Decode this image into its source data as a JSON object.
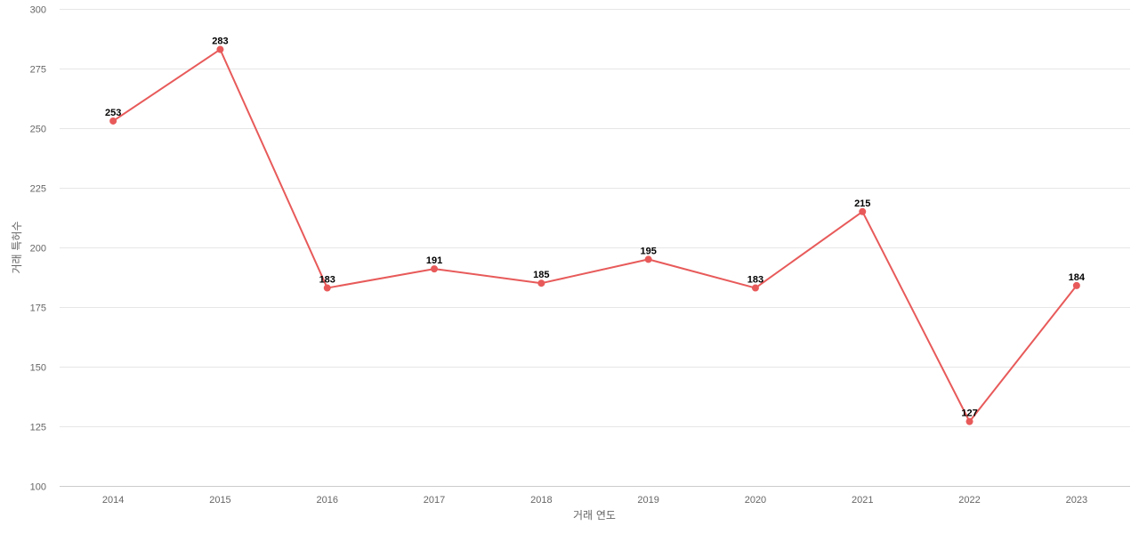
{
  "chart_data": {
    "type": "line",
    "title": "",
    "xlabel": "거래 연도",
    "ylabel": "거래 특허수",
    "categories": [
      "2014",
      "2015",
      "2016",
      "2017",
      "2018",
      "2019",
      "2020",
      "2021",
      "2022",
      "2023"
    ],
    "series": [
      {
        "values": [
          253,
          283,
          183,
          191,
          185,
          195,
          183,
          215,
          127,
          184
        ],
        "color": "#e85a5a"
      }
    ],
    "ylim": [
      100,
      300
    ],
    "yticks": [
      100,
      125,
      150,
      175,
      200,
      225,
      250,
      275,
      300
    ],
    "grid": true,
    "data_labels": true
  }
}
